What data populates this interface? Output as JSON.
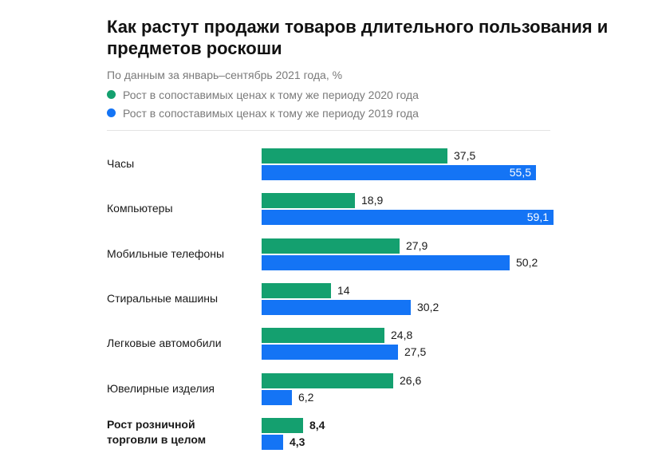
{
  "title": "Как растут продажи товаров длительного пользования и предметов роскоши",
  "subtitle": "По данным за январь–сентябрь 2021 года, %",
  "colors": {
    "series_2020": "#14a06f",
    "series_2019": "#1474f5"
  },
  "chart_data": {
    "type": "bar",
    "orientation": "horizontal",
    "legend_position": "top",
    "grid": false,
    "xlim": [
      0,
      60
    ],
    "categories": [
      "Часы",
      "Компьютеры",
      "Мобильные телефоны",
      "Стиральные машины",
      "Легковые автомобили",
      "Ювелирные изделия",
      "Рост розничной торговли в целом"
    ],
    "series": [
      {
        "name": "Рост в сопоставимых ценах к тому же периоду 2020 года",
        "values": [
          37.5,
          18.9,
          27.9,
          14,
          24.8,
          26.6,
          8.4
        ],
        "labels": [
          "37,5",
          "18,9",
          "27,9",
          "14",
          "24,8",
          "26,6",
          "8,4"
        ]
      },
      {
        "name": "Рост в сопоставимых ценах к тому же периоду 2019 года",
        "values": [
          55.5,
          59.1,
          50.2,
          30.2,
          27.5,
          6.2,
          4.3
        ],
        "labels": [
          "55,5",
          "59,1",
          "50,2",
          "30,2",
          "27,5",
          "6,2",
          "4,3"
        ]
      }
    ]
  }
}
